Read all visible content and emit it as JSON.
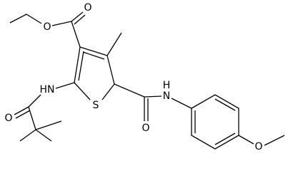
{
  "atoms": [
    "O",
    "O",
    "S",
    "HN",
    "O",
    "O",
    "N",
    "H",
    "O"
  ]
}
